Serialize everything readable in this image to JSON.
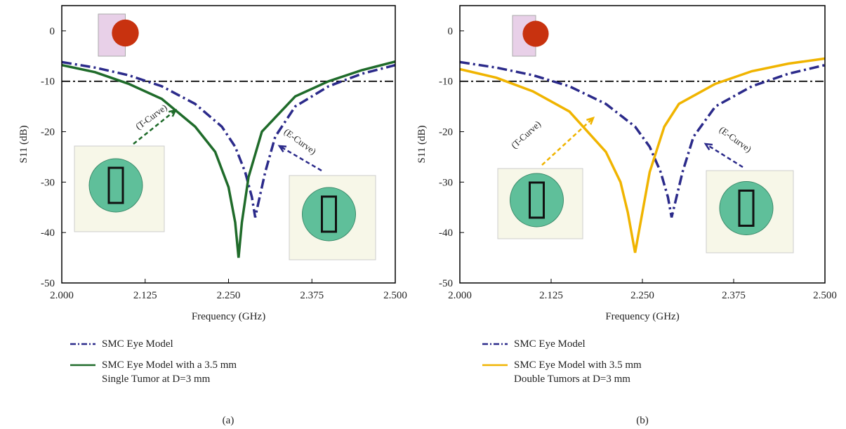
{
  "chart_data": [
    {
      "type": "line",
      "caption": "(a)",
      "x_label": "Frequency (GHz)",
      "y_label": "S11 (dB)",
      "xlim": [
        2.0,
        2.5
      ],
      "ylim": [
        -50,
        5
      ],
      "xticks": [
        {
          "value": 2.0,
          "label": "2.000"
        },
        2.125,
        {
          "value": 2.25,
          "label": "2.250"
        },
        2.375,
        {
          "value": 2.5,
          "label": "2.500"
        }
      ],
      "yticks": [
        -50,
        -40,
        -30,
        -20,
        -10,
        0
      ],
      "threshold": -10,
      "annotations": [
        "(T-Curve)",
        "(E-Curve)"
      ],
      "series": [
        {
          "name": "SMC Eye Model",
          "color": "#2b2a8a",
          "style": "dashdot",
          "x": [
            2.0,
            2.05,
            2.1,
            2.15,
            2.2,
            2.24,
            2.26,
            2.275,
            2.285,
            2.29,
            2.295,
            2.305,
            2.32,
            2.35,
            2.4,
            2.45,
            2.5
          ],
          "values": [
            -6.2,
            -7.3,
            -8.8,
            -11,
            -14.5,
            -19,
            -23,
            -28,
            -33,
            -37,
            -34,
            -28,
            -21,
            -15,
            -11,
            -8.5,
            -6.8
          ]
        },
        {
          "name": "SMC Eye Model with a 3.5 mm Single Tumor at D=3 mm",
          "color": "#1f6b2a",
          "style": "solid",
          "x": [
            2.0,
            2.05,
            2.1,
            2.15,
            2.2,
            2.23,
            2.25,
            2.26,
            2.265,
            2.27,
            2.28,
            2.3,
            2.35,
            2.4,
            2.45,
            2.5
          ],
          "values": [
            -6.8,
            -8.2,
            -10.5,
            -13.5,
            -19,
            -24,
            -31,
            -38,
            -45,
            -38,
            -29,
            -20,
            -13,
            -10,
            -7.8,
            -6.1
          ]
        }
      ]
    },
    {
      "type": "line",
      "caption": "(b)",
      "x_label": "Frequency (GHz)",
      "y_label": "S11 (dB)",
      "xlim": [
        2.0,
        2.5
      ],
      "ylim": [
        -50,
        5
      ],
      "xticks": [
        {
          "value": 2.0,
          "label": "2.000"
        },
        2.125,
        {
          "value": 2.25,
          "label": "2.250"
        },
        2.375,
        {
          "value": 2.5,
          "label": "2.500"
        }
      ],
      "yticks": [
        -50,
        -40,
        -30,
        -20,
        -10,
        0
      ],
      "threshold": -10,
      "annotations": [
        "(T-Curve)",
        "(E-Curve)"
      ],
      "series": [
        {
          "name": "SMC Eye Model",
          "color": "#2b2a8a",
          "style": "dashdot",
          "x": [
            2.0,
            2.05,
            2.1,
            2.15,
            2.2,
            2.24,
            2.26,
            2.275,
            2.285,
            2.29,
            2.295,
            2.305,
            2.32,
            2.35,
            2.4,
            2.45,
            2.5
          ],
          "values": [
            -6.2,
            -7.3,
            -8.8,
            -11,
            -14.5,
            -19,
            -23,
            -28,
            -33,
            -37,
            -34,
            -28,
            -21,
            -15,
            -11,
            -8.5,
            -6.8
          ]
        },
        {
          "name": "SMC Eye Model with 3.5 mm Double Tumors at D=3 mm",
          "color": "#f0b400",
          "style": "solid",
          "x": [
            2.0,
            2.05,
            2.1,
            2.15,
            2.2,
            2.22,
            2.23,
            2.24,
            2.25,
            2.26,
            2.28,
            2.3,
            2.35,
            2.4,
            2.45,
            2.5
          ],
          "values": [
            -7.6,
            -9.3,
            -12,
            -16,
            -24,
            -30,
            -36,
            -44,
            -36,
            -28,
            -19,
            -14.5,
            -10.5,
            -8,
            -6.5,
            -5.5
          ]
        }
      ]
    }
  ]
}
